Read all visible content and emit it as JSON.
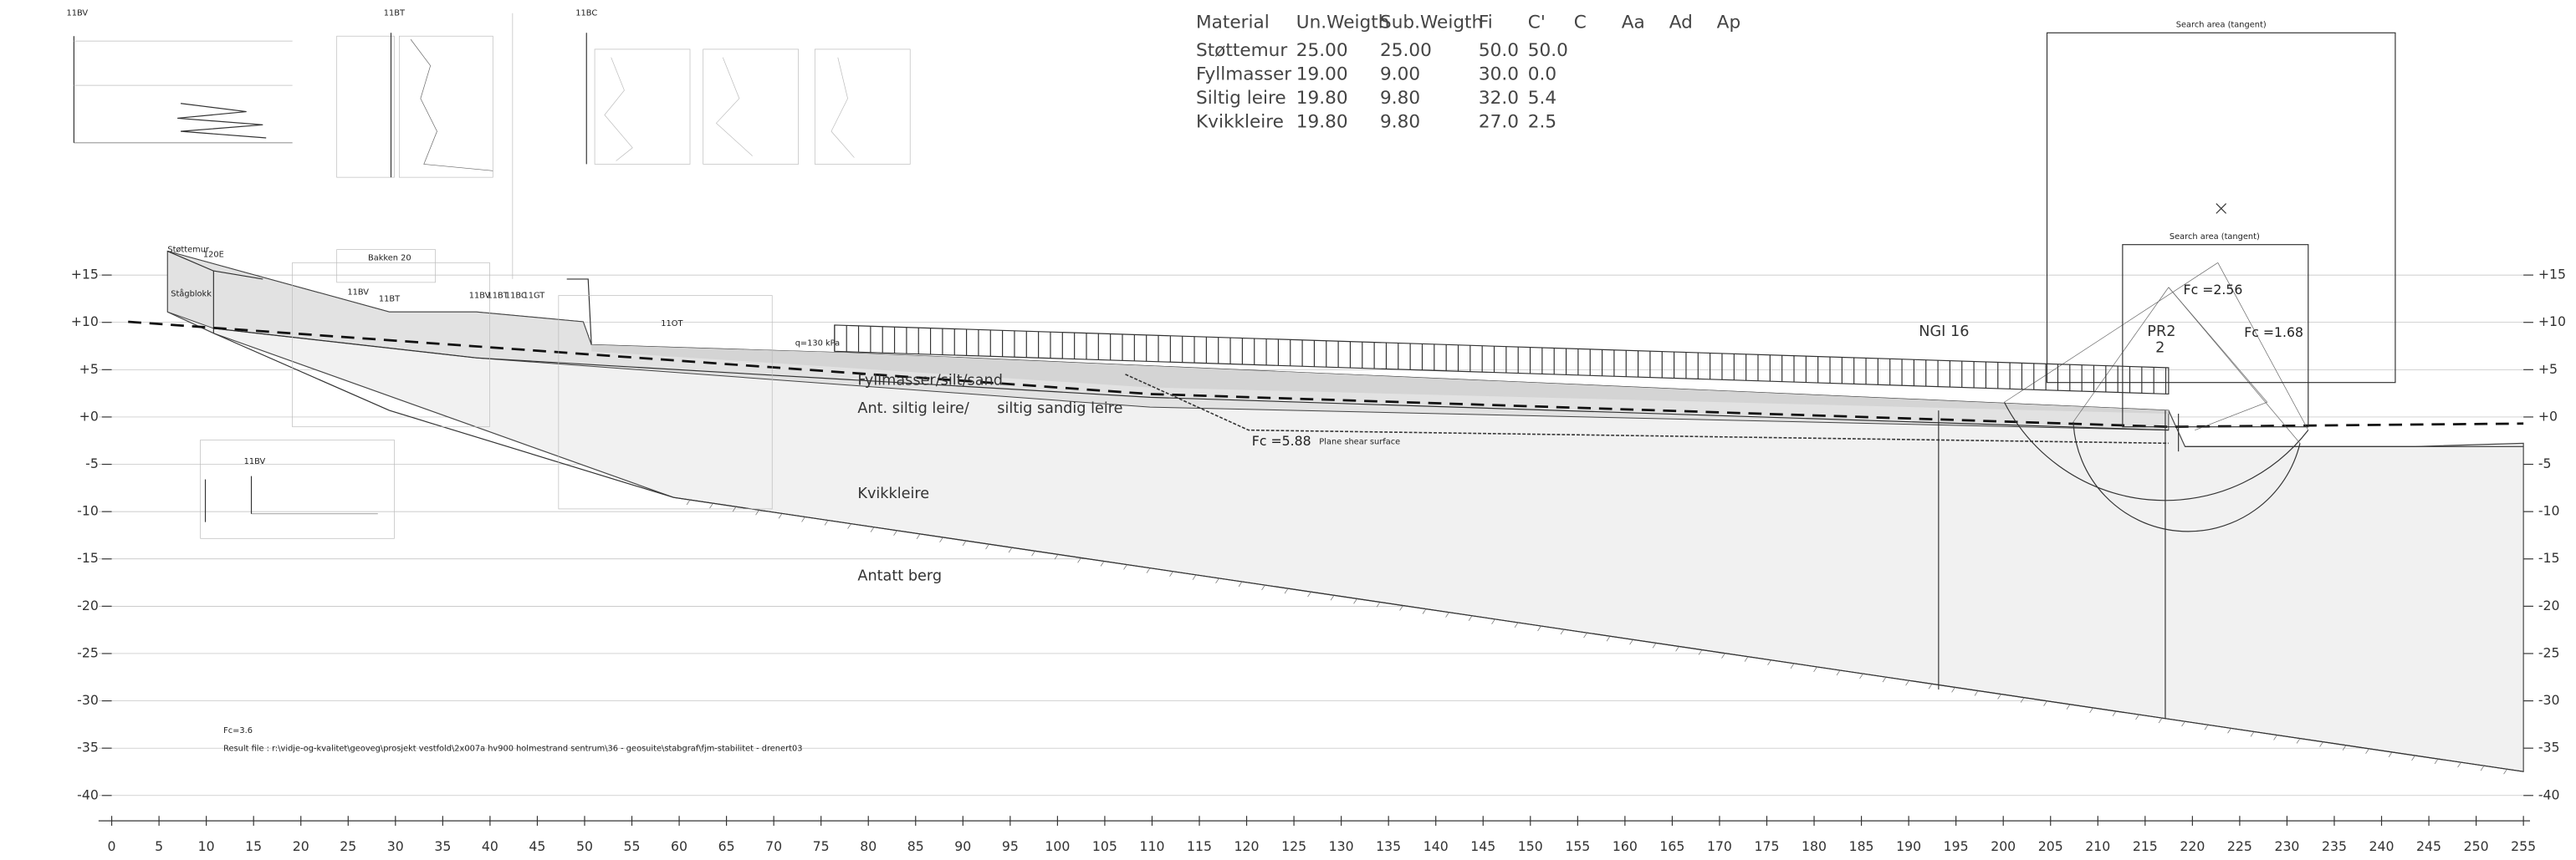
{
  "material_table": {
    "header": [
      "Material",
      "Un.Weigth",
      "Sub.Weigth",
      "Fi",
      "C'",
      "C",
      "Aa",
      "Ad",
      "Ap"
    ],
    "rows": [
      [
        "Støttemur",
        "25.00",
        "25.00",
        "50.0",
        "50.0"
      ],
      [
        "Fyllmasser",
        "19.00",
        "9.00",
        "30.0",
        "0.0"
      ],
      [
        "Siltig leire",
        "19.80",
        "9.80",
        "32.0",
        "5.4"
      ],
      [
        "Kvikkleire",
        "19.80",
        "9.80",
        "27.0",
        "2.5"
      ]
    ]
  },
  "labels": {
    "stottemur": "Støttemur",
    "stagblokk": "Stågblokk",
    "bakken": "Bakken 20",
    "fill_layer": "Fyllmasser/silt/sand",
    "clay_layer_a": "Ant. siltig leire/",
    "clay_layer_b": "siltig sandig leire",
    "quick_clay": "Kvikkleire",
    "bedrock": "Antatt berg",
    "load": "q=130 kPa",
    "ngi": "NGI 16",
    "profile": "PR2",
    "profile_no": "2",
    "fc_1": "Fc =2.56",
    "fc_2": "Fc =1.68",
    "fc_3": "Fc =5.88",
    "plane_shear": "Plane shear surface",
    "search_outer": "Search area (tangent)",
    "search_inner": "Search area (tangent)",
    "fc_result": "Fc=3.6",
    "result_file": "Result file : r:\\vidje-og-kvalitet\\geoveg\\prosjekt vestfold\\2x007a hv900 holmestrand sentrum\\36 - geosuite\\stabgraf\\fjm-stabilitet - drenert03"
  },
  "boreholes": {
    "top_1": "11BV",
    "top_2": "11BT",
    "top_3": "11BC",
    "b120": "120E",
    "b_bv": "11BV",
    "b_bt": "11BT",
    "g_bv": "11BV",
    "g_bt": "11BT",
    "g_bc": "11BC",
    "g_gt": "11GT",
    "b_ot": "11OT",
    "low_bv": "11BV"
  },
  "axes": {
    "x_ticks": [
      0,
      5,
      10,
      15,
      20,
      25,
      30,
      35,
      40,
      45,
      50,
      55,
      60,
      65,
      70,
      75,
      80,
      85,
      90,
      95,
      100,
      105,
      110,
      115,
      120,
      125,
      130,
      135,
      140,
      145,
      150,
      155,
      160,
      165,
      170,
      175,
      180,
      185,
      190,
      195,
      200,
      205,
      210,
      215,
      220,
      225,
      230,
      235,
      240,
      245,
      250,
      255
    ],
    "y_ticks": [
      {
        "value": 15,
        "label": "+15"
      },
      {
        "value": 10,
        "label": "+10"
      },
      {
        "value": 5,
        "label": "+5"
      },
      {
        "value": 0,
        "label": "+0"
      },
      -5,
      -10,
      -15,
      -20,
      -25,
      -30,
      -35,
      -40
    ]
  }
}
